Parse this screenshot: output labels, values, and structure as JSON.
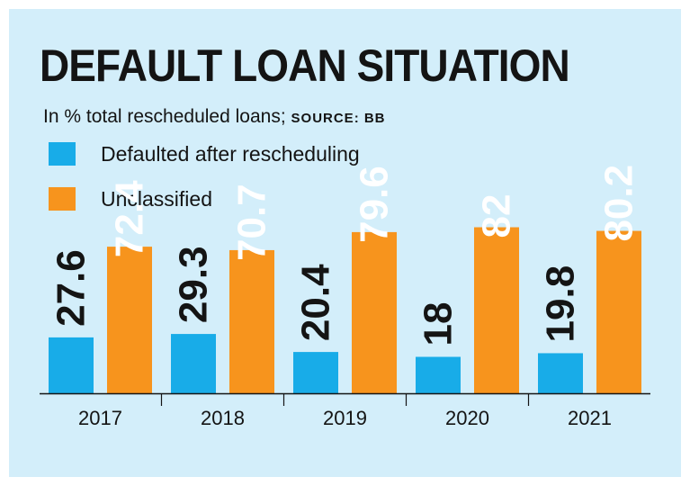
{
  "colors": {
    "background": "#d3eefa",
    "defaulted": "#18ace8",
    "unclassified": "#f7941d",
    "text": "#141414"
  },
  "chart_data": {
    "type": "bar",
    "title": "DEFAULT LOAN SITUATION",
    "subtitle": "In % total rescheduled loans;",
    "source": "SOURCE: BB",
    "categories": [
      "2017",
      "2018",
      "2019",
      "2020",
      "2021"
    ],
    "series": [
      {
        "name": "Defaulted after rescheduling",
        "color": "#18ace8",
        "values": [
          27.6,
          29.3,
          20.4,
          18,
          19.8
        ]
      },
      {
        "name": "Unclassified",
        "color": "#f7941d",
        "values": [
          72.4,
          70.7,
          79.6,
          82,
          80.2
        ]
      }
    ],
    "data_labels": [
      [
        "27.6",
        "29.3",
        "20.4",
        "18",
        "19.8"
      ],
      [
        "72.4",
        "70.7",
        "79.6",
        "82",
        "80.2"
      ]
    ],
    "ylim": [
      0,
      100
    ],
    "grid": false,
    "legend": "top-left"
  }
}
